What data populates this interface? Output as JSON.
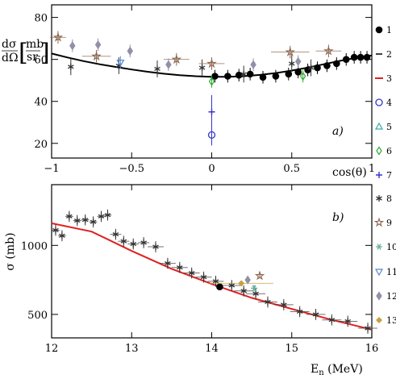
{
  "chart_data": [
    {
      "type": "scatter",
      "panel_label": "a)",
      "xlabel": "cos(θ)",
      "ylabel": "dσ/dΩ [mb/sr]",
      "ylabel_parts": {
        "num": "dσ",
        "den": "dΩ",
        "unit_num": "mb",
        "unit_den": "sr"
      },
      "xlim": [
        -1,
        1
      ],
      "ylim": [
        13,
        86
      ],
      "x_ticks": [
        -1,
        -0.5,
        0,
        0.5,
        1
      ],
      "y_ticks": [
        20,
        40,
        60,
        80
      ],
      "grid": false,
      "fit_curve": {
        "x": [
          -1,
          -0.9,
          -0.8,
          -0.7,
          -0.6,
          -0.5,
          -0.4,
          -0.3,
          -0.2,
          -0.1,
          0,
          0.1,
          0.2,
          0.3,
          0.4,
          0.5,
          0.6,
          0.7,
          0.8,
          0.9,
          1
        ],
        "y": [
          62.8,
          60.9,
          59.2,
          57.7,
          56.4,
          55.2,
          54.1,
          53.2,
          52.5,
          52.0,
          51.7,
          51.7,
          52.0,
          52.6,
          53.5,
          54.7,
          56.1,
          57.7,
          59.3,
          60.7,
          61.9
        ]
      },
      "series": [
        {
          "marker": "dot",
          "color": "#000000",
          "x": [
            0.02,
            0.1,
            0.17,
            0.24,
            0.32,
            0.4,
            0.48,
            0.54,
            0.6,
            0.66,
            0.72,
            0.78,
            0.84,
            0.89,
            0.93,
            0.97
          ],
          "y": [
            52,
            52,
            52.5,
            53,
            51.5,
            52,
            53,
            54,
            55,
            56,
            57,
            58,
            60,
            61,
            61,
            61
          ],
          "yerr": [
            3,
            3,
            3,
            3,
            3,
            3,
            3,
            3,
            3,
            3,
            3,
            3,
            3,
            3,
            3,
            3
          ]
        },
        {
          "marker": "xstar",
          "color": "#333333",
          "x": [
            -0.88,
            -0.58,
            -0.34,
            -0.06,
            0.2,
            0.5,
            0.62
          ],
          "y": [
            56.5,
            57,
            55.5,
            56,
            53,
            58,
            56
          ],
          "yerr": [
            4,
            4,
            4,
            4,
            4,
            4,
            4
          ]
        },
        {
          "marker": "circle",
          "color": "#3333cc",
          "x": [
            0.0
          ],
          "y": [
            24
          ],
          "yerr": [
            5
          ]
        },
        {
          "marker": "diamond",
          "color": "#33aa33",
          "x": [
            0.0,
            0.57
          ],
          "y": [
            49.5,
            52
          ],
          "yerr": [
            3,
            3
          ]
        },
        {
          "marker": "star",
          "color": "#8b6650",
          "x": [
            -0.96,
            -0.72,
            -0.22,
            0.0,
            0.49,
            0.73
          ],
          "y": [
            70.5,
            61.5,
            60,
            58,
            63.5,
            64
          ],
          "yerr": [
            3,
            3,
            3,
            3,
            3,
            3
          ],
          "xerr": [
            0.05,
            0.09,
            0.08,
            0.08,
            0.12,
            0.08
          ]
        },
        {
          "marker": "triangle-down",
          "color": "#5588cc",
          "x": [
            -0.57
          ],
          "y": [
            58.5
          ],
          "yerr": [
            3
          ]
        },
        {
          "marker": "plus",
          "color": "#3333cc",
          "x": [
            0.0
          ],
          "y": [
            35
          ],
          "yerr": [
            8
          ]
        },
        {
          "marker": "gray-diamond",
          "color": "#9090a8",
          "x": [
            -0.87,
            -0.71,
            -0.51,
            -0.27,
            0.26,
            0.54
          ],
          "y": [
            66.5,
            67,
            64,
            57.5,
            57.5,
            59
          ],
          "yerr": [
            3,
            3,
            3,
            3,
            3,
            3
          ]
        }
      ]
    },
    {
      "type": "line",
      "panel_label": "b)",
      "xlabel": "E",
      "xlabel_sub": "n",
      "xlabel_suffix": " (MeV)",
      "ylabel": "σ (mb)",
      "xlim": [
        12,
        16
      ],
      "ylim": [
        330,
        1440
      ],
      "x_ticks": [
        12,
        13,
        14,
        15,
        16
      ],
      "y_ticks": [
        500,
        1000
      ],
      "grid": false,
      "fit_curve": {
        "x": [
          12,
          12.5,
          13,
          13.5,
          14,
          14.5,
          15,
          15.5,
          16
        ],
        "y": [
          1160,
          1100,
          960,
          830,
          720,
          620,
          540,
          460,
          390
        ]
      },
      "series": [
        {
          "marker": "dot",
          "color": "#000000",
          "x": [
            14.1
          ],
          "y": [
            700
          ],
          "yerr": [
            25
          ]
        },
        {
          "marker": "xstar",
          "color": "#333333",
          "x": [
            12.05,
            12.13,
            12.22,
            12.32,
            12.42,
            12.52,
            12.62,
            12.7,
            12.8,
            12.9,
            13.02,
            13.15,
            13.3,
            13.45,
            13.6,
            13.75,
            13.9,
            14.05,
            14.25,
            14.4,
            14.55,
            14.7,
            14.9,
            15.1,
            15.3,
            15.5,
            15.7,
            15.95
          ],
          "y": [
            1110,
            1070,
            1210,
            1180,
            1185,
            1170,
            1210,
            1220,
            1080,
            1030,
            1010,
            1020,
            990,
            870,
            840,
            800,
            770,
            740,
            710,
            670,
            650,
            590,
            570,
            520,
            500,
            460,
            450,
            400
          ],
          "yerr": [
            40,
            40,
            40,
            40,
            40,
            40,
            40,
            40,
            40,
            40,
            40,
            40,
            40,
            40,
            40,
            40,
            40,
            40,
            40,
            40,
            40,
            40,
            40,
            40,
            40,
            40,
            40,
            40
          ],
          "xerr": [
            0.05,
            0.05,
            0.05,
            0.05,
            0.05,
            0.05,
            0.05,
            0.05,
            0.07,
            0.07,
            0.07,
            0.07,
            0.1,
            0.1,
            0.1,
            0.1,
            0.1,
            0.1,
            0.12,
            0.12,
            0.12,
            0.12,
            0.12,
            0.12,
            0.12,
            0.12,
            0.12,
            0.12
          ]
        },
        {
          "marker": "star",
          "color": "#8b6650",
          "x": [
            14.6
          ],
          "y": [
            780
          ],
          "yerr": [
            20
          ]
        },
        {
          "marker": "asterisk",
          "color": "#66aa99",
          "x": [
            14.53
          ],
          "y": [
            690
          ],
          "yerr": [
            25
          ]
        },
        {
          "marker": "gray-diamond",
          "color": "#9090a8",
          "x": [
            14.45
          ],
          "y": [
            750
          ],
          "yerr": [
            20
          ]
        },
        {
          "marker": "cross",
          "color": "#c8a040",
          "x": [
            14.37
          ],
          "y": [
            725
          ],
          "yerr": [
            10
          ],
          "xerr": [
            0.4
          ]
        }
      ]
    }
  ],
  "legend": [
    "1",
    "2",
    "3",
    "4",
    "5",
    "6",
    "7",
    "8",
    "9",
    "10",
    "11",
    "12",
    "13"
  ],
  "legend_colors": {
    "1": "#000000",
    "2": "#000000",
    "3": "#e02020",
    "4": "#3333cc",
    "5": "#33aaaa",
    "6": "#33aa33",
    "7": "#3333cc",
    "8": "#333333",
    "9": "#8b6650",
    "10": "#66aa99",
    "11": "#5588cc",
    "12": "#9090a8",
    "13": "#c8a040"
  }
}
